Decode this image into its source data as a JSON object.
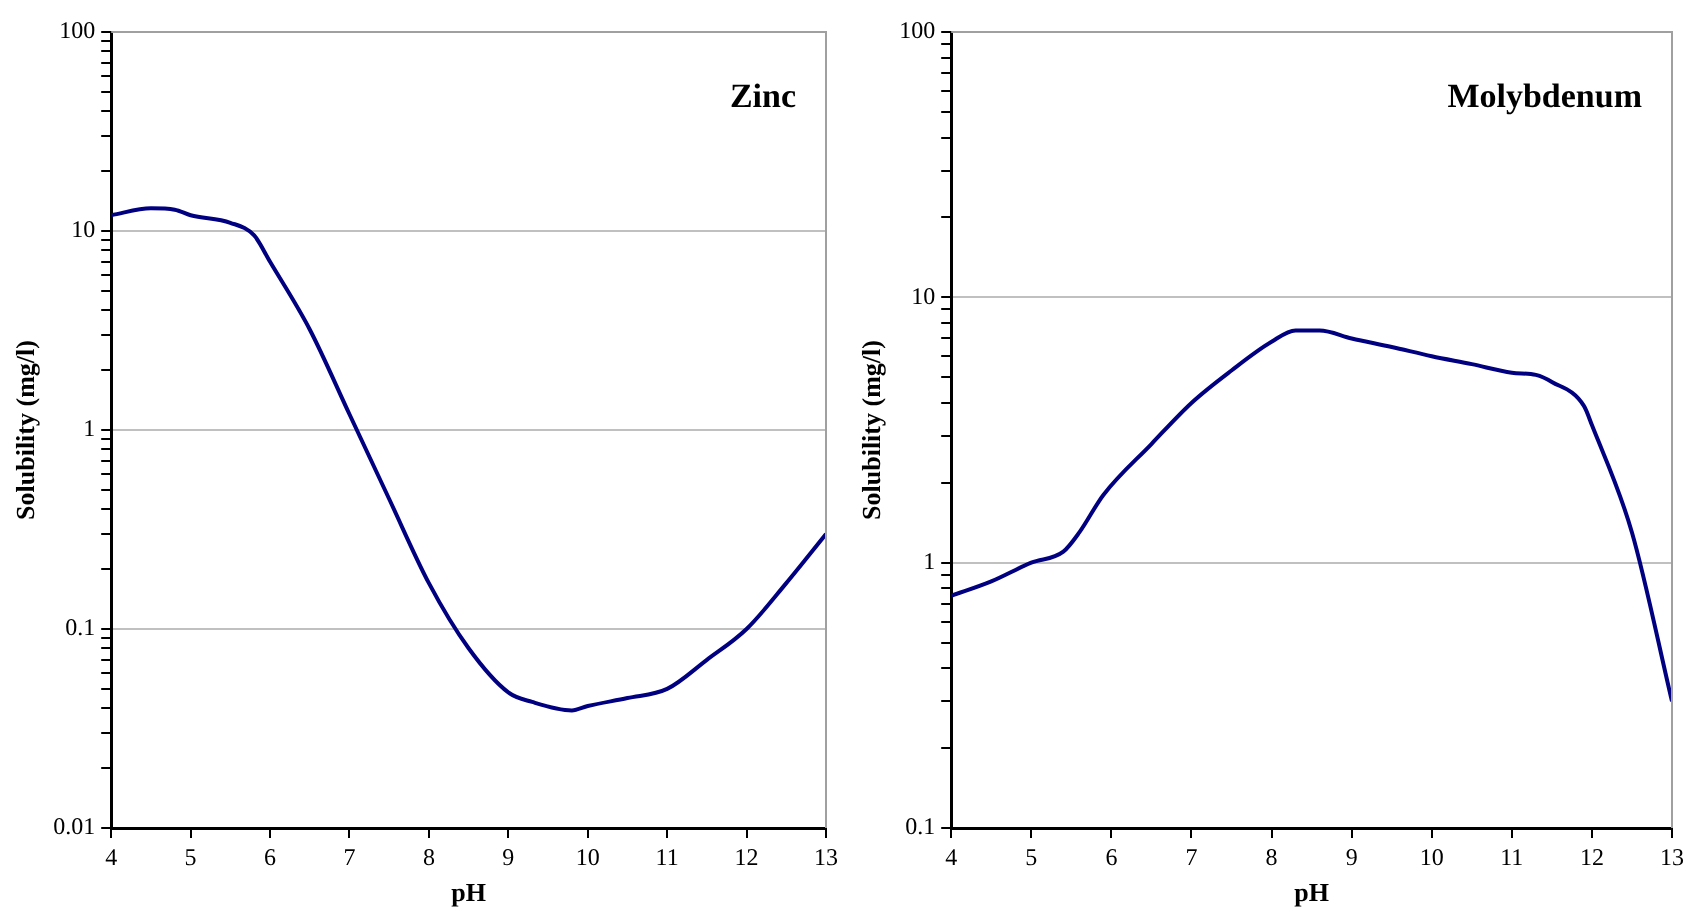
{
  "chart_data": [
    {
      "type": "line",
      "title": "Zinc",
      "xlabel": "pH",
      "ylabel": "Solubility (mg/l)",
      "log": "y",
      "grid": "y",
      "marker": "none",
      "line_style": "solid",
      "legend": false,
      "xlim": [
        4,
        13
      ],
      "xticks": [
        4,
        5,
        6,
        7,
        8,
        9,
        10,
        11,
        12,
        13
      ],
      "ylim": [
        0.01,
        100
      ],
      "yticks": [
        0.01,
        {
          "value": 0.02,
          "label": null
        },
        {
          "value": 0.03,
          "label": null
        },
        {
          "value": 0.04,
          "label": null
        },
        {
          "value": 0.05,
          "label": null
        },
        {
          "value": 0.06,
          "label": null
        },
        {
          "value": 0.07,
          "label": null
        },
        {
          "value": 0.08,
          "label": null
        },
        {
          "value": 0.09,
          "label": null
        },
        0.1,
        {
          "value": 0.2,
          "label": null
        },
        {
          "value": 0.3,
          "label": null
        },
        {
          "value": 0.4,
          "label": null
        },
        {
          "value": 0.5,
          "label": null
        },
        {
          "value": 0.6,
          "label": null
        },
        {
          "value": 0.7,
          "label": null
        },
        {
          "value": 0.8,
          "label": null
        },
        {
          "value": 0.9,
          "label": null
        },
        1,
        {
          "value": 2,
          "label": null
        },
        {
          "value": 3,
          "label": null
        },
        {
          "value": 4,
          "label": null
        },
        {
          "value": 5,
          "label": null
        },
        {
          "value": 6,
          "label": null
        },
        {
          "value": 7,
          "label": null
        },
        {
          "value": 8,
          "label": null
        },
        {
          "value": 9,
          "label": null
        },
        10,
        {
          "value": 20,
          "label": null
        },
        {
          "value": 30,
          "label": null
        },
        {
          "value": 40,
          "label": null
        },
        {
          "value": 50,
          "label": null
        },
        {
          "value": 60,
          "label": null
        },
        {
          "value": 70,
          "label": null
        },
        {
          "value": 80,
          "label": null
        },
        {
          "value": 90,
          "label": null
        },
        100
      ],
      "x": [
        4,
        4.5,
        4.8,
        5,
        5.5,
        5.8,
        6,
        6.5,
        7,
        7.5,
        8,
        8.5,
        9,
        9.3,
        9.8,
        10,
        10.5,
        11,
        11.5,
        12,
        12.5,
        13
      ],
      "series": [
        {
          "color": "#000080",
          "values": [
            12,
            13,
            12.8,
            12,
            11,
            9.5,
            7,
            3.2,
            1.2,
            0.45,
            0.17,
            0.08,
            0.048,
            0.043,
            0.039,
            0.041,
            0.045,
            0.05,
            0.07,
            0.1,
            0.17,
            0.3
          ]
        }
      ]
    },
    {
      "type": "line",
      "title": "Molybdenum",
      "xlabel": "pH",
      "ylabel": "Solubility (mg/l)",
      "log": "y",
      "grid": "y",
      "marker": "none",
      "line_style": "solid",
      "legend": false,
      "xlim": [
        4,
        13
      ],
      "xticks": [
        4,
        5,
        6,
        7,
        8,
        9,
        10,
        11,
        12,
        13
      ],
      "ylim": [
        0.1,
        100
      ],
      "yticks": [
        0.1,
        {
          "value": 0.2,
          "label": null
        },
        {
          "value": 0.3,
          "label": null
        },
        {
          "value": 0.4,
          "label": null
        },
        {
          "value": 0.5,
          "label": null
        },
        {
          "value": 0.6,
          "label": null
        },
        {
          "value": 0.7,
          "label": null
        },
        {
          "value": 0.8,
          "label": null
        },
        {
          "value": 0.9,
          "label": null
        },
        1,
        {
          "value": 2,
          "label": null
        },
        {
          "value": 3,
          "label": null
        },
        {
          "value": 4,
          "label": null
        },
        {
          "value": 5,
          "label": null
        },
        {
          "value": 6,
          "label": null
        },
        {
          "value": 7,
          "label": null
        },
        {
          "value": 8,
          "label": null
        },
        {
          "value": 9,
          "label": null
        },
        10,
        {
          "value": 20,
          "label": null
        },
        {
          "value": 30,
          "label": null
        },
        {
          "value": 40,
          "label": null
        },
        {
          "value": 50,
          "label": null
        },
        {
          "value": 60,
          "label": null
        },
        {
          "value": 70,
          "label": null
        },
        {
          "value": 80,
          "label": null
        },
        {
          "value": 90,
          "label": null
        },
        100
      ],
      "x": [
        4,
        4.5,
        5,
        5.4,
        5.6,
        5.9,
        6.5,
        7,
        7.5,
        8,
        8.3,
        8.6,
        9,
        9.5,
        10,
        10.5,
        11,
        11.3,
        11.5,
        11.9,
        12,
        12.5,
        13
      ],
      "series": [
        {
          "color": "#000080",
          "values": [
            0.75,
            0.85,
            1.0,
            1.1,
            1.3,
            1.8,
            2.8,
            4.0,
            5.3,
            6.8,
            7.5,
            7.5,
            7.0,
            6.5,
            6.0,
            5.6,
            5.2,
            5.1,
            4.8,
            3.9,
            3.3,
            1.3,
            0.3
          ]
        }
      ]
    }
  ]
}
